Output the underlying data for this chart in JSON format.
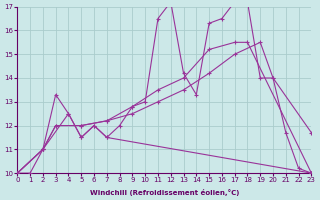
{
  "xlabel": "Windchill (Refroidissement éolien,°C)",
  "xlim": [
    0,
    23
  ],
  "ylim": [
    10,
    17
  ],
  "yticks": [
    10,
    11,
    12,
    13,
    14,
    15,
    16,
    17
  ],
  "xticks": [
    0,
    1,
    2,
    3,
    4,
    5,
    6,
    7,
    8,
    9,
    10,
    11,
    12,
    13,
    14,
    15,
    16,
    17,
    18,
    19,
    20,
    21,
    22,
    23
  ],
  "bg_color": "#cce8e8",
  "grid_color": "#aacccc",
  "line_color": "#993399",
  "line1_x": [
    0,
    1,
    2,
    3,
    4,
    5,
    6,
    7,
    8,
    9,
    10,
    11,
    12,
    13,
    14,
    15,
    16,
    17,
    18,
    19,
    20,
    21,
    22,
    23
  ],
  "line1_y": [
    10,
    10,
    11,
    13.3,
    12.5,
    11.5,
    12.0,
    11.5,
    12.0,
    12.8,
    13.0,
    16.5,
    17.2,
    14.2,
    13.3,
    16.3,
    16.5,
    17.2,
    17.2,
    14.0,
    14.0,
    11.7,
    10.2,
    10.0
  ],
  "line2_x": [
    0,
    2,
    4,
    5,
    6,
    7,
    23
  ],
  "line2_y": [
    10,
    11,
    12.5,
    11.5,
    12.0,
    11.5,
    10.0
  ],
  "line3_x": [
    0,
    2,
    3,
    5,
    7,
    9,
    11,
    13,
    15,
    17,
    19,
    20,
    23
  ],
  "line3_y": [
    10,
    11,
    12.0,
    12.0,
    12.2,
    12.5,
    13.0,
    13.5,
    14.2,
    15.0,
    15.5,
    14.0,
    11.7
  ],
  "line4_x": [
    0,
    2,
    3,
    5,
    7,
    9,
    11,
    13,
    15,
    17,
    18,
    23
  ],
  "line4_y": [
    10,
    11,
    12.0,
    12.0,
    12.2,
    12.8,
    13.5,
    14.0,
    15.2,
    15.5,
    15.5,
    10.0
  ]
}
